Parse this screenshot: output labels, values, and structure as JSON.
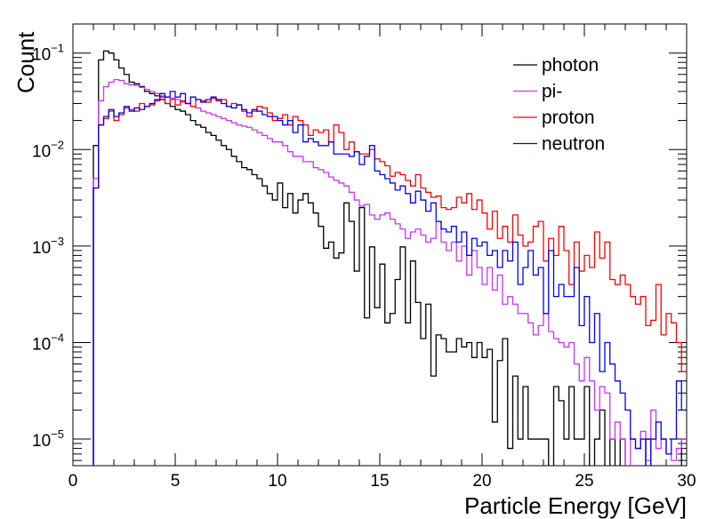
{
  "chart_data": {
    "type": "line",
    "title": "",
    "xlabel": "Particle Energy [GeV]",
    "ylabel": "Count",
    "xlim": [
      0,
      30
    ],
    "ylim": [
      5.3e-06,
      0.2
    ],
    "yscale": "log",
    "x_ticks": [
      {
        "value": 0,
        "label": "0"
      },
      {
        "value": 5,
        "label": "5"
      },
      {
        "value": 10,
        "label": "10"
      },
      {
        "value": 15,
        "label": "15"
      },
      {
        "value": 20,
        "label": "20"
      },
      {
        "value": 25,
        "label": "25"
      },
      {
        "value": 30,
        "label": "30"
      }
    ],
    "y_ticks": [
      {
        "value": 0.1,
        "base": "10",
        "exp": "−1"
      },
      {
        "value": 0.01,
        "base": "10",
        "exp": "−2"
      },
      {
        "value": 0.001,
        "base": "10",
        "exp": "−3"
      },
      {
        "value": 0.0001,
        "base": "10",
        "exp": "−4"
      },
      {
        "value": 1e-05,
        "base": "10",
        "exp": "−5"
      }
    ],
    "legend_position": "top-right",
    "bin_edges_start": 0,
    "bin_width": 0.25,
    "bins": 120,
    "series": [
      {
        "name": "photon",
        "color": "#000000",
        "values": [
          0,
          0,
          0,
          0,
          0.011,
          0.085,
          0.105,
          0.1,
          0.085,
          0.07,
          0.06,
          0.05,
          0.048,
          0.045,
          0.04,
          0.038,
          0.036,
          0.033,
          0.03,
          0.028,
          0.026,
          0.025,
          0.023,
          0.02,
          0.018,
          0.017,
          0.015,
          0.014,
          0.0125,
          0.011,
          0.01,
          0.0085,
          0.0075,
          0.0065,
          0.0062,
          0.0055,
          0.005,
          0.0042,
          0.0035,
          0.003,
          0.0045,
          0.0025,
          0.0035,
          0.0022,
          0.003,
          0.0035,
          0.0028,
          0.0022,
          0.0016,
          0.00095,
          0.0011,
          0.00075,
          0.00085,
          0.0028,
          0.0018,
          0.00055,
          0.0025,
          0.00018,
          0.00098,
          0.00023,
          0.00065,
          0.00016,
          0.0002,
          0.00045,
          0.00098,
          0.00016,
          0.0007,
          0.00026,
          0.00011,
          0.00025,
          4.5e-05,
          0.00012,
          0.00011,
          8e-05,
          8e-05,
          0.00011,
          9e-05,
          0.0001,
          7e-05,
          0.0001,
          7e-05,
          8.5e-05,
          1.5e-05,
          6.5e-05,
          0.00011,
          8e-06,
          4.5e-05,
          1e-05,
          3.5e-05,
          1e-05,
          1e-05,
          1e-05,
          1e-05,
          0,
          3.5e-05,
          2.5e-05,
          1e-05,
          3.5e-05,
          1e-05,
          1e-05,
          3.5e-05,
          0,
          1e-05,
          2e-05,
          0,
          1e-05,
          0,
          1e-05,
          0,
          0,
          0,
          0,
          1e-05,
          0,
          0,
          0,
          0,
          0,
          0,
          1e-05
        ]
      },
      {
        "name": "pi-",
        "color": "#cc33ff",
        "values": [
          0,
          0,
          0,
          0,
          0.005,
          0.032,
          0.045,
          0.05,
          0.053,
          0.052,
          0.048,
          0.047,
          0.046,
          0.044,
          0.042,
          0.04,
          0.038,
          0.036,
          0.035,
          0.034,
          0.033,
          0.031,
          0.03,
          0.028,
          0.027,
          0.025,
          0.024,
          0.023,
          0.022,
          0.021,
          0.02,
          0.019,
          0.018,
          0.0175,
          0.017,
          0.016,
          0.015,
          0.014,
          0.013,
          0.012,
          0.012,
          0.011,
          0.0095,
          0.0085,
          0.0085,
          0.0075,
          0.0075,
          0.0065,
          0.0062,
          0.0058,
          0.0052,
          0.0048,
          0.0045,
          0.0042,
          0.0036,
          0.003,
          0.0026,
          0.0027,
          0.0021,
          0.0019,
          0.0021,
          0.0022,
          0.0019,
          0.0017,
          0.0015,
          0.0012,
          0.0014,
          0.0015,
          0.0013,
          0.0011,
          0.0012,
          0.0018,
          0.0011,
          0.0009,
          0.0011,
          0.0007,
          0.001,
          0.0005,
          0.0009,
          0.0006,
          0.0004,
          0.0006,
          0.00035,
          0.0005,
          0.00025,
          0.0003,
          0.00025,
          0.0002,
          0.0002,
          0.00016,
          0.00012,
          0.00015,
          0.0002,
          0.00013,
          0.00011,
          0.0001,
          9e-05,
          0.0001,
          6e-05,
          4e-05,
          7e-05,
          4e-05,
          2e-05,
          3.5e-05,
          3e-05,
          1e-05,
          1.5e-05,
          1e-05,
          5e-06,
          1e-05,
          8e-06,
          1.2e-05,
          6e-06,
          2e-05,
          8e-06,
          1e-05,
          7e-06,
          6e-06,
          8e-06,
          1e-05
        ]
      },
      {
        "name": "proton",
        "color": "#ff0000",
        "values": [
          0,
          0,
          0,
          0,
          0.004,
          0.018,
          0.021,
          0.025,
          0.02,
          0.023,
          0.027,
          0.026,
          0.025,
          0.03,
          0.028,
          0.029,
          0.032,
          0.035,
          0.03,
          0.033,
          0.029,
          0.032,
          0.03,
          0.028,
          0.033,
          0.032,
          0.031,
          0.034,
          0.032,
          0.033,
          0.028,
          0.03,
          0.029,
          0.025,
          0.022,
          0.025,
          0.028,
          0.027,
          0.024,
          0.02,
          0.021,
          0.023,
          0.018,
          0.022,
          0.02,
          0.018,
          0.014,
          0.016,
          0.015,
          0.016,
          0.012,
          0.018,
          0.015,
          0.01,
          0.012,
          0.0095,
          0.009,
          0.009,
          0.01,
          0.008,
          0.0075,
          0.0068,
          0.0053,
          0.0058,
          0.0055,
          0.0048,
          0.0042,
          0.0055,
          0.004,
          0.0036,
          0.0032,
          0.0033,
          0.0025,
          0.0024,
          0.0025,
          0.0032,
          0.0028,
          0.0035,
          0.0024,
          0.003,
          0.0022,
          0.0015,
          0.0023,
          0.0012,
          0.0016,
          0.0011,
          0.0021,
          0.0013,
          0.001,
          0.0011,
          0.0016,
          0.0018,
          0.0007,
          0.0012,
          0.0008,
          0.0016,
          0.0009,
          0.0004,
          0.0011,
          0.00055,
          0.0008,
          0.0006,
          0.0014,
          0.00075,
          0.0011,
          0.00045,
          0.0004,
          0.0005,
          0.0004,
          0.0003,
          0.00025,
          0.0003,
          0.00015,
          0.00017,
          0.0004,
          0.00012,
          0.0002,
          0.00016,
          0.0001,
          5e-05
        ]
      },
      {
        "name": "neutron",
        "color": "#0000ff",
        "values": [
          0,
          0,
          0,
          0,
          0.004,
          0.018,
          0.022,
          0.026,
          0.022,
          0.024,
          0.028,
          0.025,
          0.027,
          0.026,
          0.028,
          0.03,
          0.033,
          0.038,
          0.035,
          0.04,
          0.035,
          0.038,
          0.03,
          0.035,
          0.033,
          0.031,
          0.033,
          0.035,
          0.033,
          0.03,
          0.028,
          0.027,
          0.029,
          0.026,
          0.024,
          0.026,
          0.025,
          0.023,
          0.022,
          0.022,
          0.02,
          0.018,
          0.02,
          0.015,
          0.018,
          0.012,
          0.013,
          0.012,
          0.011,
          0.011,
          0.012,
          0.009,
          0.009,
          0.009,
          0.0085,
          0.0095,
          0.007,
          0.0085,
          0.011,
          0.006,
          0.0055,
          0.005,
          0.0045,
          0.0038,
          0.0042,
          0.0035,
          0.0028,
          0.0037,
          0.003,
          0.0023,
          0.0028,
          0.0018,
          0.0015,
          0.0014,
          0.0016,
          0.0011,
          0.0014,
          0.0008,
          0.0012,
          0.001,
          0.0011,
          0.0008,
          0.0009,
          0.0006,
          0.0009,
          0.0007,
          0.0011,
          0.0004,
          0.0006,
          0.0009,
          0.0005,
          0.0006,
          0.0002,
          0.0009,
          0.0003,
          0.0004,
          0.0003,
          0.0003,
          0.0006,
          0.00015,
          0.0003,
          0.0001,
          0.0002,
          5e-05,
          0.0001,
          6e-05,
          4e-05,
          3e-05,
          2e-05,
          1e-05,
          8e-06,
          1e-05,
          5e-06,
          1e-05,
          1.5e-05,
          1e-05,
          7e-06,
          1e-05,
          4e-05,
          2e-05
        ]
      }
    ]
  }
}
